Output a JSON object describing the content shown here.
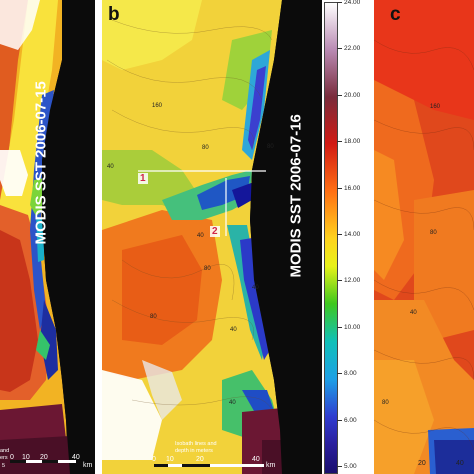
{
  "panels": {
    "a": {
      "date_label": "MODIS SST 2006-07-15",
      "scale_ticks": [
        "0",
        "10",
        "20",
        "40"
      ],
      "scale_unit": "km",
      "legend_fragment": "and",
      "legend_fragment2": "ers",
      "corner_fragment": "5"
    },
    "b": {
      "letter": "b",
      "date_label": "MODIS SST 2006-07-16",
      "markers": [
        "1",
        "2"
      ],
      "isobaths": [
        "160",
        "80",
        "40",
        "80",
        "40",
        "80",
        "80",
        "40",
        "40",
        "40"
      ],
      "legend_line1": "Isobath lines and",
      "legend_line2": "depth in meters",
      "scale_ticks": [
        "0",
        "10",
        "20",
        "40"
      ],
      "scale_unit": "km"
    },
    "c": {
      "letter": "c",
      "isobaths": [
        "80",
        "40",
        "80",
        "160"
      ],
      "scale_fragment": "20",
      "scale_fragment2": "40"
    }
  },
  "colorbar": {
    "labels": [
      "24.00",
      "22.00",
      "20.00",
      "18.00",
      "16.00",
      "14.00",
      "12.00",
      "10.00",
      "8.00",
      "6.00",
      "5.00"
    ],
    "colors": [
      "#ffffff",
      "#b98ab3",
      "#7a2c3c",
      "#d21a14",
      "#ff6f14",
      "#ffd21e",
      "#3ec81e",
      "#10c0b8",
      "#1da0e6",
      "#2f3cd0",
      "#1a0f6e"
    ]
  }
}
